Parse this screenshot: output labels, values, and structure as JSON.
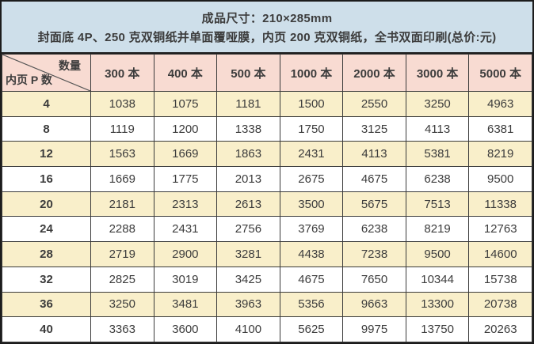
{
  "caption": {
    "line1": "成品尺寸：210×285mm",
    "line2": "封面底 4P、250 克双铜纸并单面覆哑膜，内页 200 克双铜纸，全书双面印刷(总价:元)"
  },
  "table": {
    "corner": {
      "top_right": "数量",
      "bottom_left": "内页 P 数"
    },
    "columns": [
      "300 本",
      "400 本",
      "500 本",
      "1000 本",
      "2000 本",
      "3000 本",
      "5000 本"
    ],
    "rows": [
      {
        "pages": "4",
        "values": [
          "1038",
          "1075",
          "1181",
          "1500",
          "2550",
          "3250",
          "4963"
        ]
      },
      {
        "pages": "8",
        "values": [
          "1119",
          "1200",
          "1338",
          "1750",
          "3125",
          "4113",
          "6381"
        ]
      },
      {
        "pages": "12",
        "values": [
          "1563",
          "1669",
          "1863",
          "2431",
          "4113",
          "5381",
          "8219"
        ]
      },
      {
        "pages": "16",
        "values": [
          "1669",
          "1775",
          "2013",
          "2675",
          "4675",
          "6238",
          "9500"
        ]
      },
      {
        "pages": "20",
        "values": [
          "2181",
          "2313",
          "2613",
          "3500",
          "5675",
          "7513",
          "11338"
        ]
      },
      {
        "pages": "24",
        "values": [
          "2288",
          "2431",
          "2756",
          "3769",
          "6238",
          "8219",
          "12763"
        ]
      },
      {
        "pages": "28",
        "values": [
          "2719",
          "2900",
          "3281",
          "4438",
          "7238",
          "9500",
          "14600"
        ]
      },
      {
        "pages": "32",
        "values": [
          "2825",
          "3019",
          "3425",
          "4675",
          "7650",
          "10344",
          "15738"
        ]
      },
      {
        "pages": "36",
        "values": [
          "3250",
          "3481",
          "3963",
          "5356",
          "9663",
          "13300",
          "20738"
        ]
      },
      {
        "pages": "40",
        "values": [
          "3363",
          "3600",
          "4100",
          "5625",
          "9975",
          "13750",
          "20263"
        ]
      }
    ]
  },
  "colors": {
    "caption_background": "#cedfea",
    "header_row_background": "#f8dbd2",
    "odd_row_background": "#f9efca",
    "even_row_background": "#ffffff",
    "border": "#3a3a3a",
    "text": "#3c3c3c"
  }
}
